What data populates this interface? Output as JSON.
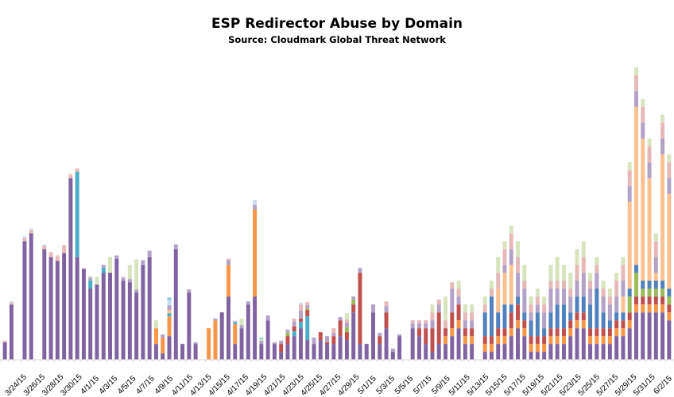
{
  "chart_data": {
    "type": "bar",
    "stacked": true,
    "title": "ESP Redirector Abuse by Domain",
    "subtitle": "Source: Cloudmark Global Threat Network",
    "xlabel": "",
    "ylabel": "",
    "legend": "none",
    "grid": false,
    "x_tick_labels": [
      "3/24/15",
      "3/26/15",
      "3/28/15",
      "3/30/15",
      "4/1/15",
      "4/3/15",
      "4/5/15",
      "4/7/15",
      "4/9/15",
      "4/11/15",
      "4/13/15",
      "4/15/15",
      "4/17/15",
      "4/19/15",
      "4/21/15",
      "4/23/15",
      "4/25/15",
      "4/27/15",
      "4/29/15",
      "5/1/15",
      "5/3/15",
      "5/5/15",
      "5/7/15",
      "5/9/15",
      "5/11/15",
      "5/13/15",
      "5/15/15",
      "5/17/15",
      "5/19/15",
      "5/21/15",
      "5/23/15",
      "5/25/15",
      "5/27/15",
      "5/29/15",
      "5/31/15",
      "6/2/15"
    ],
    "series_colors": [
      "#8064a2",
      "#f79646",
      "#4bacc6",
      "#c0504d",
      "#9bbb59",
      "#4f81bd",
      "#fac090",
      "#b3a2c7",
      "#e6b9b8",
      "#d7e4bd",
      "#c6d9f1",
      "#93cddd",
      "#f2dcdb"
    ],
    "y_scale": {
      "min": 0,
      "max": 380
    },
    "bars": [
      [
        22,
        0,
        0,
        0,
        0,
        0,
        0,
        0,
        2,
        0,
        0,
        0,
        0
      ],
      [
        70,
        0,
        0,
        0,
        0,
        0,
        0,
        0,
        2,
        0,
        2,
        0,
        0
      ],
      [
        0,
        0,
        0,
        0,
        0,
        0,
        0,
        0,
        0,
        0,
        0,
        0,
        0
      ],
      [
        150,
        0,
        0,
        0,
        0,
        0,
        0,
        0,
        4,
        0,
        2,
        0,
        0
      ],
      [
        160,
        0,
        0,
        0,
        0,
        0,
        0,
        0,
        4,
        0,
        2,
        0,
        0
      ],
      [
        0,
        0,
        0,
        0,
        0,
        0,
        0,
        0,
        0,
        0,
        0,
        0,
        0
      ],
      [
        140,
        0,
        0,
        0,
        0,
        0,
        0,
        0,
        4,
        0,
        2,
        0,
        0
      ],
      [
        130,
        0,
        0,
        0,
        0,
        0,
        0,
        0,
        6,
        0,
        0,
        0,
        0
      ],
      [
        125,
        0,
        0,
        0,
        0,
        0,
        0,
        0,
        6,
        0,
        0,
        0,
        2
      ],
      [
        135,
        0,
        0,
        0,
        0,
        0,
        0,
        0,
        10,
        0,
        0,
        0,
        0
      ],
      [
        230,
        0,
        0,
        0,
        0,
        0,
        0,
        0,
        4,
        0,
        0,
        0,
        2
      ],
      [
        130,
        0,
        108,
        0,
        0,
        0,
        0,
        0,
        4,
        0,
        0,
        0,
        0
      ],
      [
        115,
        0,
        0,
        0,
        0,
        0,
        0,
        0,
        0,
        0,
        0,
        0,
        2
      ],
      [
        90,
        0,
        10,
        0,
        0,
        0,
        0,
        4,
        0,
        2,
        0,
        0,
        0
      ],
      [
        95,
        0,
        0,
        0,
        0,
        0,
        0,
        0,
        0,
        10,
        0,
        0,
        0
      ],
      [
        110,
        0,
        6,
        0,
        0,
        0,
        0,
        4,
        0,
        0,
        0,
        0,
        0
      ],
      [
        110,
        0,
        0,
        0,
        0,
        0,
        0,
        0,
        0,
        20,
        0,
        0,
        0
      ],
      [
        128,
        0,
        0,
        0,
        0,
        0,
        0,
        4,
        0,
        0,
        0,
        0,
        0
      ],
      [
        100,
        0,
        0,
        0,
        0,
        0,
        0,
        4,
        0,
        0,
        0,
        0,
        2
      ],
      [
        98,
        0,
        0,
        0,
        0,
        0,
        0,
        4,
        0,
        18,
        0,
        0,
        0
      ],
      [
        85,
        0,
        0,
        0,
        0,
        0,
        0,
        4,
        0,
        38,
        0,
        0,
        0
      ],
      [
        120,
        0,
        0,
        0,
        0,
        0,
        0,
        6,
        0,
        0,
        0,
        0,
        0
      ],
      [
        130,
        0,
        0,
        0,
        0,
        0,
        0,
        8,
        0,
        0,
        0,
        0,
        0
      ],
      [
        20,
        20,
        0,
        0,
        0,
        0,
        0,
        0,
        0,
        10,
        0,
        0,
        0
      ],
      [
        8,
        20,
        0,
        0,
        0,
        0,
        0,
        4,
        0,
        0,
        0,
        0,
        0
      ],
      [
        30,
        25,
        4,
        0,
        0,
        0,
        4,
        6,
        0,
        0,
        6,
        4,
        0
      ],
      [
        140,
        0,
        0,
        0,
        0,
        0,
        0,
        6,
        0,
        0,
        0,
        0,
        0
      ],
      [
        20,
        0,
        0,
        0,
        0,
        0,
        0,
        0,
        0,
        0,
        0,
        0,
        0
      ],
      [
        85,
        0,
        0,
        0,
        0,
        0,
        0,
        4,
        0,
        0,
        0,
        0,
        0
      ],
      [
        20,
        0,
        0,
        0,
        0,
        0,
        0,
        2,
        0,
        0,
        0,
        0,
        0
      ],
      [
        0,
        0,
        0,
        0,
        0,
        0,
        0,
        0,
        0,
        0,
        0,
        0,
        0
      ],
      [
        0,
        40,
        0,
        0,
        0,
        0,
        0,
        0,
        0,
        0,
        0,
        0,
        0
      ],
      [
        0,
        50,
        0,
        0,
        0,
        0,
        0,
        2,
        0,
        0,
        0,
        0,
        0
      ],
      [
        60,
        0,
        0,
        0,
        0,
        0,
        0,
        0,
        0,
        0,
        0,
        0,
        0
      ],
      [
        80,
        40,
        0,
        0,
        0,
        0,
        0,
        6,
        2,
        0,
        0,
        0,
        0
      ],
      [
        20,
        25,
        2,
        0,
        0,
        0,
        0,
        2,
        0,
        0,
        0,
        0,
        0
      ],
      [
        40,
        0,
        0,
        0,
        0,
        0,
        0,
        4,
        0,
        8,
        0,
        0,
        0
      ],
      [
        70,
        0,
        0,
        0,
        0,
        0,
        0,
        4,
        0,
        0,
        0,
        0,
        0
      ],
      [
        80,
        110,
        0,
        0,
        0,
        0,
        0,
        6,
        0,
        0,
        6,
        0,
        0
      ],
      [
        20,
        0,
        0,
        0,
        0,
        0,
        0,
        4,
        0,
        2,
        0,
        2,
        0
      ],
      [
        50,
        0,
        0,
        0,
        0,
        0,
        0,
        6,
        0,
        0,
        0,
        0,
        0
      ],
      [
        20,
        0,
        0,
        0,
        0,
        0,
        0,
        2,
        0,
        0,
        0,
        0,
        0
      ],
      [
        10,
        0,
        0,
        10,
        0,
        0,
        0,
        4,
        0,
        0,
        0,
        0,
        0
      ],
      [
        20,
        0,
        0,
        10,
        4,
        0,
        0,
        4,
        0,
        0,
        0,
        0,
        0
      ],
      [
        30,
        0,
        6,
        6,
        0,
        0,
        0,
        6,
        4,
        0,
        0,
        0,
        0
      ],
      [
        40,
        0,
        8,
        4,
        0,
        0,
        0,
        10,
        8,
        0,
        2,
        0,
        0
      ],
      [
        25,
        0,
        30,
        8,
        2,
        0,
        0,
        4,
        4,
        0,
        0,
        0,
        0
      ],
      [
        20,
        0,
        0,
        0,
        0,
        0,
        0,
        8,
        0,
        0,
        0,
        0,
        0
      ],
      [
        25,
        0,
        0,
        10,
        0,
        0,
        0,
        0,
        0,
        0,
        0,
        0,
        0
      ],
      [
        20,
        0,
        0,
        2,
        0,
        0,
        0,
        8,
        0,
        0,
        0,
        0,
        0
      ],
      [
        20,
        0,
        0,
        10,
        0,
        0,
        0,
        4,
        6,
        0,
        0,
        0,
        0
      ],
      [
        30,
        0,
        0,
        20,
        0,
        0,
        0,
        4,
        0,
        0,
        0,
        0,
        0
      ],
      [
        25,
        0,
        0,
        10,
        6,
        0,
        0,
        6,
        4,
        8,
        0,
        0,
        0
      ],
      [
        60,
        0,
        0,
        10,
        6,
        0,
        0,
        4,
        0,
        0,
        0,
        0,
        0
      ],
      [
        20,
        0,
        0,
        90,
        0,
        0,
        0,
        6,
        0,
        0,
        0,
        0,
        0
      ],
      [
        20,
        0,
        0,
        0,
        0,
        0,
        0,
        0,
        0,
        0,
        0,
        0,
        0
      ],
      [
        60,
        0,
        0,
        0,
        0,
        0,
        0,
        10,
        0,
        0,
        0,
        0,
        0
      ],
      [
        20,
        0,
        0,
        10,
        0,
        0,
        0,
        4,
        0,
        0,
        0,
        0,
        0
      ],
      [
        40,
        0,
        0,
        20,
        0,
        0,
        0,
        8,
        6,
        0,
        0,
        0,
        0
      ],
      [
        10,
        0,
        0,
        0,
        0,
        0,
        0,
        4,
        0,
        0,
        0,
        0,
        0
      ],
      [
        30,
        0,
        0,
        0,
        0,
        0,
        0,
        2,
        0,
        0,
        0,
        0,
        0
      ],
      [
        0,
        0,
        0,
        0,
        0,
        0,
        0,
        0,
        0,
        0,
        0,
        0,
        0
      ],
      [
        40,
        0,
        0,
        0,
        0,
        0,
        0,
        6,
        4,
        0,
        0,
        0,
        0
      ],
      [
        30,
        0,
        0,
        10,
        0,
        0,
        0,
        6,
        4,
        0,
        0,
        0,
        0
      ],
      [
        20,
        0,
        0,
        20,
        0,
        0,
        0,
        6,
        4,
        0,
        0,
        0,
        0
      ],
      [
        10,
        0,
        0,
        30,
        0,
        0,
        0,
        10,
        10,
        10,
        0,
        0,
        0
      ],
      [
        20,
        0,
        0,
        40,
        0,
        0,
        0,
        10,
        6,
        0,
        0,
        0,
        0
      ],
      [
        20,
        10,
        0,
        10,
        0,
        0,
        0,
        0,
        10,
        30,
        0,
        0,
        0
      ],
      [
        30,
        10,
        0,
        20,
        0,
        0,
        0,
        30,
        8,
        0,
        0,
        0,
        0
      ],
      [
        40,
        10,
        0,
        20,
        0,
        0,
        0,
        10,
        10,
        10,
        0,
        0,
        0
      ],
      [
        20,
        10,
        0,
        10,
        0,
        0,
        0,
        10,
        10,
        10,
        0,
        0,
        0
      ],
      [
        20,
        10,
        0,
        10,
        0,
        0,
        0,
        10,
        10,
        10,
        0,
        0,
        0
      ],
      [
        0,
        0,
        0,
        0,
        0,
        0,
        0,
        0,
        0,
        0,
        0,
        0,
        0
      ],
      [
        10,
        10,
        0,
        10,
        0,
        30,
        0,
        0,
        10,
        10,
        0,
        0,
        0
      ],
      [
        10,
        10,
        0,
        10,
        0,
        50,
        0,
        0,
        10,
        10,
        0,
        0,
        0
      ],
      [
        20,
        10,
        0,
        10,
        0,
        20,
        30,
        0,
        20,
        20,
        0,
        0,
        0
      ],
      [
        20,
        10,
        0,
        10,
        0,
        30,
        40,
        10,
        20,
        10,
        0,
        0,
        0
      ],
      [
        30,
        10,
        0,
        20,
        0,
        10,
        50,
        20,
        20,
        10,
        0,
        0,
        0
      ],
      [
        40,
        10,
        0,
        20,
        0,
        10,
        0,
        30,
        20,
        20,
        0,
        0,
        0
      ],
      [
        30,
        10,
        0,
        10,
        0,
        10,
        0,
        30,
        10,
        20,
        0,
        0,
        0
      ],
      [
        10,
        10,
        0,
        10,
        0,
        20,
        0,
        10,
        10,
        10,
        0,
        0,
        0
      ],
      [
        10,
        10,
        0,
        10,
        0,
        30,
        0,
        10,
        10,
        10,
        0,
        0,
        0
      ],
      [
        10,
        10,
        0,
        10,
        0,
        10,
        0,
        20,
        10,
        10,
        0,
        0,
        0
      ],
      [
        20,
        10,
        0,
        10,
        0,
        20,
        0,
        30,
        10,
        20,
        0,
        0,
        0
      ],
      [
        20,
        10,
        0,
        10,
        0,
        30,
        0,
        20,
        10,
        30,
        0,
        0,
        0
      ],
      [
        20,
        10,
        0,
        10,
        0,
        30,
        0,
        20,
        10,
        20,
        0,
        0,
        0
      ],
      [
        30,
        10,
        0,
        10,
        0,
        10,
        0,
        20,
        10,
        20,
        0,
        0,
        0
      ],
      [
        40,
        10,
        0,
        10,
        0,
        20,
        0,
        20,
        20,
        20,
        0,
        0,
        0
      ],
      [
        40,
        10,
        0,
        10,
        0,
        20,
        0,
        30,
        20,
        20,
        0,
        0,
        0
      ],
      [
        20,
        10,
        0,
        10,
        0,
        30,
        0,
        20,
        10,
        10,
        0,
        0,
        0
      ],
      [
        20,
        10,
        0,
        10,
        0,
        50,
        0,
        20,
        10,
        10,
        0,
        0,
        0
      ],
      [
        20,
        10,
        0,
        10,
        0,
        20,
        0,
        20,
        10,
        10,
        0,
        0,
        0
      ],
      [
        20,
        10,
        0,
        10,
        0,
        10,
        0,
        20,
        10,
        10,
        0,
        0,
        0
      ],
      [
        30,
        10,
        0,
        10,
        0,
        10,
        0,
        20,
        20,
        10,
        0,
        0,
        0
      ],
      [
        30,
        10,
        0,
        10,
        0,
        10,
        20,
        20,
        20,
        10,
        0,
        0,
        0
      ],
      [
        40,
        10,
        0,
        10,
        20,
        10,
        110,
        20,
        20,
        10,
        0,
        0,
        0
      ],
      [
        60,
        10,
        0,
        10,
        30,
        10,
        200,
        20,
        20,
        10,
        0,
        0,
        0
      ],
      [
        60,
        10,
        0,
        10,
        10,
        10,
        180,
        20,
        20,
        10,
        0,
        0,
        0
      ],
      [
        60,
        10,
        0,
        10,
        10,
        10,
        130,
        20,
        20,
        10,
        0,
        0,
        0
      ],
      [
        60,
        10,
        0,
        10,
        10,
        10,
        10,
        20,
        20,
        10,
        0,
        0,
        0
      ],
      [
        60,
        10,
        0,
        10,
        10,
        10,
        160,
        20,
        20,
        10,
        0,
        0,
        0
      ],
      [
        50,
        10,
        0,
        10,
        10,
        10,
        120,
        20,
        20,
        10,
        0,
        0,
        0
      ]
    ]
  }
}
